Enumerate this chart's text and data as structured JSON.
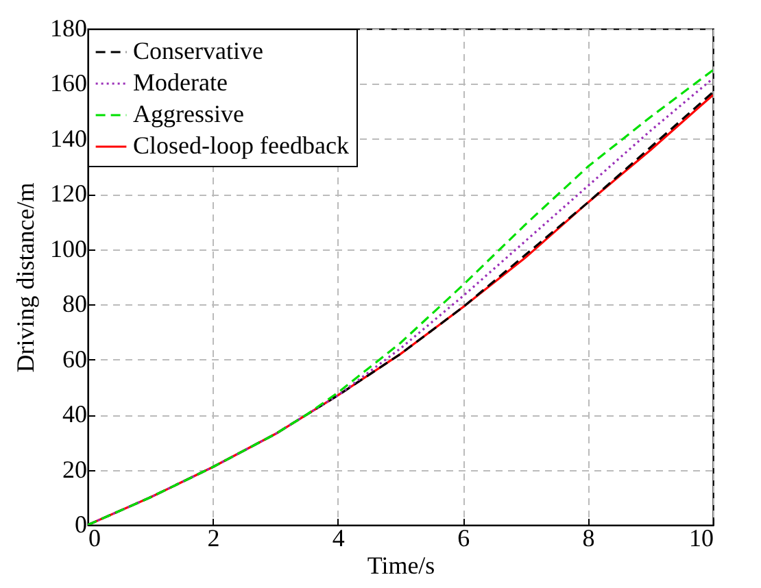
{
  "chart_data": {
    "type": "line",
    "xlabel": "Time/s",
    "ylabel": "Driving distance/m",
    "x": [
      0,
      1,
      2,
      3,
      3.5,
      4,
      5,
      6,
      7,
      8,
      9,
      10
    ],
    "series": [
      {
        "name": "Conservative",
        "color": "#000000",
        "line_style": "dashed",
        "values": [
          0,
          10,
          21,
          33,
          40,
          47,
          62,
          79,
          98,
          117,
          137,
          157
        ]
      },
      {
        "name": "Moderate",
        "color": "#9b30b8",
        "line_style": "dotted",
        "values": [
          0,
          10,
          21,
          33,
          40,
          47,
          64,
          83,
          103,
          123,
          143,
          162
        ]
      },
      {
        "name": "Aggressive",
        "color": "#00e000",
        "line_style": "dashed",
        "values": [
          0,
          10,
          21,
          33,
          40,
          48,
          66,
          87,
          109,
          130,
          148,
          165
        ]
      },
      {
        "name": "Closed-loop feedback",
        "color": "#ff0000",
        "line_style": "solid",
        "values": [
          0,
          10,
          21,
          33,
          40,
          47,
          62,
          79,
          97,
          117,
          136,
          156
        ]
      }
    ],
    "xlim": [
      0,
      10
    ],
    "xticks": [
      0,
      2,
      4,
      6,
      8,
      10
    ],
    "ylim": [
      0,
      180
    ],
    "yticks": [
      0,
      20,
      40,
      60,
      80,
      100,
      120,
      140,
      160,
      180
    ],
    "grid": true,
    "legend": "top left",
    "marker": "none"
  }
}
